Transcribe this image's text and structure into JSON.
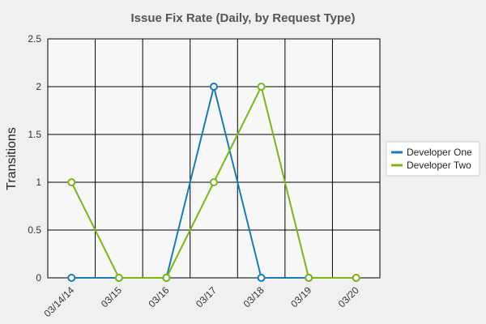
{
  "chart_data": {
    "type": "line",
    "title": "Issue Fix Rate (Daily, by Request Type)",
    "xlabel": "",
    "ylabel": "Transitions",
    "categories": [
      "03/14/14",
      "03/15",
      "03/16",
      "03/17",
      "03/18",
      "03/19",
      "03/20"
    ],
    "ylim": [
      0,
      2.5
    ],
    "yticks": [
      "0",
      "0.5",
      "1",
      "1.5",
      "2",
      "2.5"
    ],
    "grid": true,
    "legend_position": "right",
    "series": [
      {
        "name": "Developer One",
        "color": "#1a7ab8",
        "values": [
          0,
          0,
          0,
          2,
          0,
          0,
          0
        ]
      },
      {
        "name": "Developer Two",
        "color": "#7cb518",
        "values": [
          1,
          0,
          0,
          1,
          2,
          0,
          0
        ]
      }
    ]
  }
}
